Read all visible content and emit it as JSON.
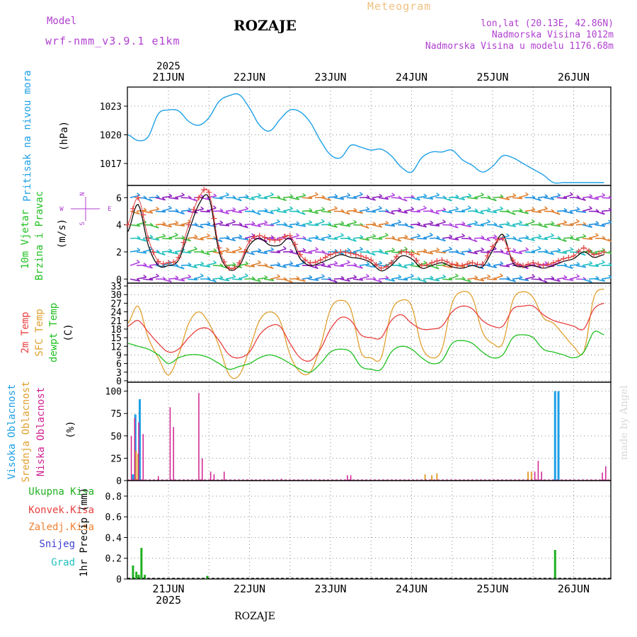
{
  "header": {
    "model_label": "Model",
    "model_name": "wrf-nmm_v3.9.1 e1km",
    "station": "ROZAJE",
    "meteogram": "Meteogram",
    "coords": "lon,lat (20.13E, 42.86N)",
    "elev": "Nadmorska Visina 1012m",
    "elev_model": "Nadmorska Visina u modelu 1176.68m",
    "year_top": "2025",
    "year_bottom": "2025",
    "footer_station": "ROZAJE",
    "credit": "made by Angel"
  },
  "colors": {
    "pressure": "#1ea0e6",
    "temp2m": "#e84040",
    "sfc": "#e0a030",
    "dewpt": "#20c020",
    "high_cloud": "#1ea0e6",
    "mid_cloud": "#e0a030",
    "low_cloud": "#d02090",
    "total_precip": "#20b020",
    "conv": "#e84040",
    "frozen": "#f08030",
    "snow": "#4040d0",
    "hail": "#20c0c0",
    "wind_label": "#20c020",
    "compass": "#b040d0",
    "meta": "#b040d0",
    "meteogram": "#f0c080",
    "credit": "#d8d8d8"
  },
  "day_labels": [
    "21JUN",
    "22JUN",
    "23JUN",
    "24JUN",
    "25JUN",
    "26JUN"
  ],
  "panels": {
    "pressure": {
      "line1": "Pritisak na nivou mora",
      "unit": "(hPa)"
    },
    "wind": {
      "line1": "10m Vjetar",
      "line2": "Brzina i Pravac",
      "unit": "(m/s)",
      "compass_w": "W",
      "compass_e": "E",
      "compass_n": "N",
      "compass_s": "S"
    },
    "temp": {
      "line1": "2m Temp",
      "line2": "SFC Temp",
      "line3": "dewpt Temp",
      "unit": "(C)"
    },
    "cloud": {
      "line1": "Visoka Oblacnost",
      "line2": "Srednja Oblacnost",
      "line3": "Niska Oblacnost",
      "unit": "(%)"
    },
    "precip": {
      "l1": "Ukupna Kisa",
      "l2": "Konvek.Kisa",
      "l3": "Zaledj.Kisa",
      "l4": "Snijeg",
      "l5": "Grad",
      "unit": "1hr Precip (mm)"
    }
  },
  "chart_data": [
    {
      "type": "line",
      "name": "",
      "x_hours": [
        0,
        3,
        6,
        9,
        12,
        15,
        18,
        21,
        24,
        27,
        30,
        33,
        36,
        39,
        42,
        45,
        48,
        51,
        54,
        57,
        60,
        63,
        66,
        69,
        72,
        75,
        78,
        81,
        84,
        87,
        90,
        93,
        96,
        99,
        102,
        105,
        108,
        111,
        114,
        117,
        120,
        123,
        126,
        129,
        132,
        135,
        138,
        141
      ],
      "values": [
        1020.0,
        1019.4,
        1019.8,
        1022.2,
        1022.6,
        1022.5,
        1021.4,
        1021.0,
        1021.8,
        1023.5,
        1024.1,
        1024.2,
        1022.8,
        1021.0,
        1020.4,
        1021.6,
        1022.6,
        1022.4,
        1021.3,
        1019.4,
        1017.9,
        1017.6,
        1018.9,
        1018.7,
        1018.4,
        1018.5,
        1017.8,
        1016.6,
        1016.1,
        1017.6,
        1018.2,
        1018.2,
        1018.4,
        1017.4,
        1016.8,
        1016.1,
        1016.7,
        1017.8,
        1017.6,
        1017.0,
        1016.4,
        1015.8,
        1015.0,
        1015.0,
        1015.0,
        1015.0,
        1015.0,
        1015.0
      ],
      "yticks": [
        1017,
        1020,
        1023
      ],
      "ylim": [
        1014.7,
        1025.0
      ]
    },
    {
      "type": "line",
      "name": "",
      "x_hours": [
        0,
        3,
        6,
        9,
        12,
        15,
        18,
        21,
        24,
        27,
        30,
        33,
        36,
        39,
        42,
        45,
        48,
        51,
        54,
        57,
        60,
        63,
        66,
        69,
        72,
        75,
        78,
        81,
        84,
        87,
        90,
        93,
        96,
        99,
        102,
        105,
        108,
        111,
        114,
        117,
        120,
        123,
        126,
        129,
        132,
        135,
        138,
        141
      ],
      "series": [
        {
          "values": [
            3.5,
            5.5,
            2.5,
            1.0,
            1.0,
            1.4,
            3.5,
            5.5,
            6.0,
            2.0,
            0.7,
            1.0,
            2.5,
            3.0,
            2.5,
            2.5,
            3.0,
            1.5,
            1.0,
            1.2,
            1.5,
            1.8,
            1.6,
            1.5,
            1.2,
            0.6,
            1.0,
            1.7,
            1.5,
            0.8,
            1.0,
            1.2,
            0.9,
            0.8,
            1.0,
            0.9,
            2.1,
            3.3,
            1.2,
            0.9,
            1.0,
            0.8,
            1.0,
            1.3,
            1.5,
            2.0,
            1.6,
            1.8
          ]
        },
        {
          "values": [
            4.0,
            6.0,
            3.0,
            1.3,
            1.2,
            1.6,
            4.0,
            6.0,
            6.4,
            2.3,
            0.8,
            1.2,
            2.8,
            3.2,
            2.9,
            2.9,
            3.2,
            1.8,
            1.2,
            1.4,
            1.8,
            2.0,
            1.9,
            1.7,
            1.4,
            0.8,
            1.2,
            2.0,
            1.8,
            1.0,
            1.2,
            1.4,
            1.1,
            1.0,
            1.2,
            1.1,
            2.4,
            3.0,
            1.4,
            1.0,
            1.2,
            1.0,
            1.2,
            1.5,
            1.7,
            2.3,
            1.8,
            2.0
          ]
        }
      ],
      "yticks": [
        0,
        2,
        4,
        6
      ],
      "ylim": [
        -0.3,
        6.9
      ],
      "barb_rows": [
        0,
        1,
        2,
        3,
        4,
        5,
        6
      ]
    },
    {
      "type": "line",
      "name": "",
      "x_hours": [
        0,
        3,
        6,
        9,
        12,
        15,
        18,
        21,
        24,
        27,
        30,
        33,
        36,
        39,
        42,
        45,
        48,
        51,
        54,
        57,
        60,
        63,
        66,
        69,
        72,
        75,
        78,
        81,
        84,
        87,
        90,
        93,
        96,
        99,
        102,
        105,
        108,
        111,
        114,
        117,
        120,
        123,
        126,
        129,
        132,
        135,
        138,
        141
      ],
      "series": [
        {
          "values": [
            19,
            21,
            17,
            13,
            10,
            11,
            15,
            18,
            18,
            14,
            9,
            8,
            10,
            16,
            19,
            19,
            13,
            8,
            7,
            11,
            18,
            22,
            21,
            16,
            15,
            15,
            21,
            23,
            20,
            18,
            18,
            19,
            24,
            26,
            25,
            21,
            19,
            19,
            25,
            26,
            26,
            23,
            21,
            20,
            19,
            18,
            25,
            27
          ]
        },
        {
          "values": [
            20,
            26,
            15,
            8,
            2,
            9,
            20,
            24,
            20,
            12,
            2,
            2,
            11,
            21,
            24,
            21,
            9,
            3,
            3,
            12,
            25,
            28,
            25,
            10,
            8,
            8,
            24,
            28,
            26,
            12,
            8,
            11,
            27,
            31,
            29,
            17,
            13,
            13,
            28,
            31,
            29,
            22,
            20,
            16,
            12,
            10,
            29,
            32
          ]
        },
        {
          "values": [
            13,
            12,
            11,
            9,
            6,
            8,
            9,
            9,
            8,
            6,
            4,
            5,
            6,
            8,
            9,
            8,
            6,
            4,
            3,
            6,
            10,
            11,
            10,
            5,
            4,
            4,
            10,
            12,
            11,
            8,
            6,
            7,
            13,
            14,
            13,
            10,
            8,
            9,
            15,
            16,
            15,
            11,
            10,
            9,
            8,
            10,
            17,
            16
          ]
        }
      ],
      "yticks": [
        0,
        3,
        6,
        9,
        12,
        15,
        18,
        21,
        24,
        27,
        30,
        33
      ],
      "ylim": [
        -0.5,
        34
      ]
    },
    {
      "type": "bar",
      "name": "",
      "ylim": [
        0,
        110
      ],
      "yticks": [
        0,
        25,
        50,
        75,
        100
      ],
      "series": [
        {
          "points": [
            [
              1.5,
              7
            ],
            [
              2.2,
              74
            ],
            [
              3.5,
              91
            ],
            [
              126.5,
              100
            ],
            [
              127.5,
              100
            ]
          ]
        },
        {
          "points": [
            [
              2.4,
              33
            ],
            [
              3.0,
              30
            ],
            [
              88.0,
              7
            ],
            [
              90.0,
              6
            ],
            [
              91.5,
              8
            ],
            [
              118.5,
              10
            ],
            [
              119.5,
              10
            ]
          ]
        },
        {
          "points": [
            [
              1.0,
              50
            ],
            [
              2.0,
              70
            ],
            [
              3.2,
              65
            ],
            [
              4.5,
              52
            ],
            [
              9.0,
              5
            ],
            [
              12.5,
              82
            ],
            [
              13.5,
              60
            ],
            [
              21.0,
              98
            ],
            [
              22.0,
              25
            ],
            [
              24.5,
              10
            ],
            [
              25.5,
              7
            ],
            [
              28.5,
              10
            ],
            [
              45.5,
              2
            ],
            [
              65.0,
              6
            ],
            [
              66.0,
              6
            ],
            [
              120.5,
              10
            ],
            [
              121.5,
              22
            ],
            [
              122.5,
              10
            ],
            [
              140.5,
              9
            ],
            [
              141.5,
              16
            ]
          ]
        }
      ]
    },
    {
      "type": "bar",
      "name": "",
      "ylim": [
        0,
        0.95
      ],
      "yticks": [
        0,
        0.2,
        0.4,
        0.6,
        0.8
      ],
      "series": [
        {
          "points": [
            [
              1.5,
              0.13
            ],
            [
              2.5,
              0.07
            ],
            [
              3.2,
              0.04
            ],
            [
              4.0,
              0.3
            ],
            [
              5.0,
              0.04
            ],
            [
              23.5,
              0.03
            ],
            [
              126.5,
              0.28
            ]
          ]
        }
      ]
    }
  ]
}
